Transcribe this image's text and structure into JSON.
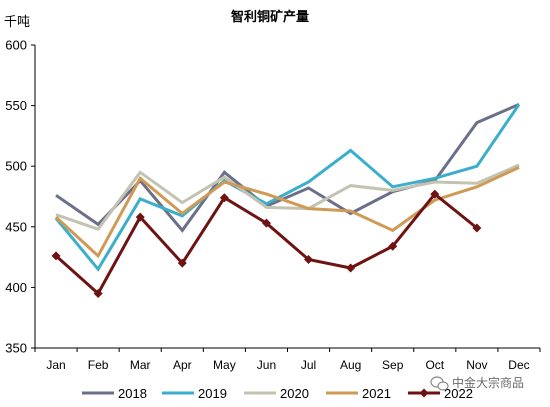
{
  "chart_data": {
    "type": "line",
    "title": "智利铜矿产量",
    "unit": "千吨",
    "categories": [
      "Jan",
      "Feb",
      "Mar",
      "Apr",
      "May",
      "Jun",
      "Jul",
      "Aug",
      "Sep",
      "Oct",
      "Nov",
      "Dec"
    ],
    "ylim": [
      350,
      600
    ],
    "yticks": [
      "350",
      "400",
      "450",
      "500",
      "550",
      "600"
    ],
    "grid": false,
    "legend_position": "bottom",
    "series": [
      {
        "name": "2018",
        "color": "#6b6f89",
        "values": [
          476,
          452,
          488,
          447,
          495,
          467,
          482,
          461,
          479,
          488,
          536,
          551
        ]
      },
      {
        "name": "2019",
        "color": "#3aaecb",
        "values": [
          457,
          415,
          473,
          459,
          488,
          469,
          487,
          513,
          483,
          490,
          500,
          551
        ]
      },
      {
        "name": "2020",
        "color": "#c4c3b2",
        "values": [
          460,
          448,
          495,
          470,
          491,
          466,
          465,
          484,
          480,
          487,
          486,
          501
        ]
      },
      {
        "name": "2021",
        "color": "#cf9a55",
        "values": [
          458,
          426,
          490,
          461,
          487,
          477,
          465,
          463,
          447,
          472,
          483,
          499
        ]
      },
      {
        "name": "2022",
        "color": "#6e1212",
        "marker": "diamond",
        "values": [
          426,
          395,
          458,
          420,
          474,
          453,
          423,
          416,
          434,
          477,
          449,
          null
        ]
      }
    ]
  },
  "watermark": {
    "text": "中金大宗商品",
    "icon": "wechat-icon"
  }
}
